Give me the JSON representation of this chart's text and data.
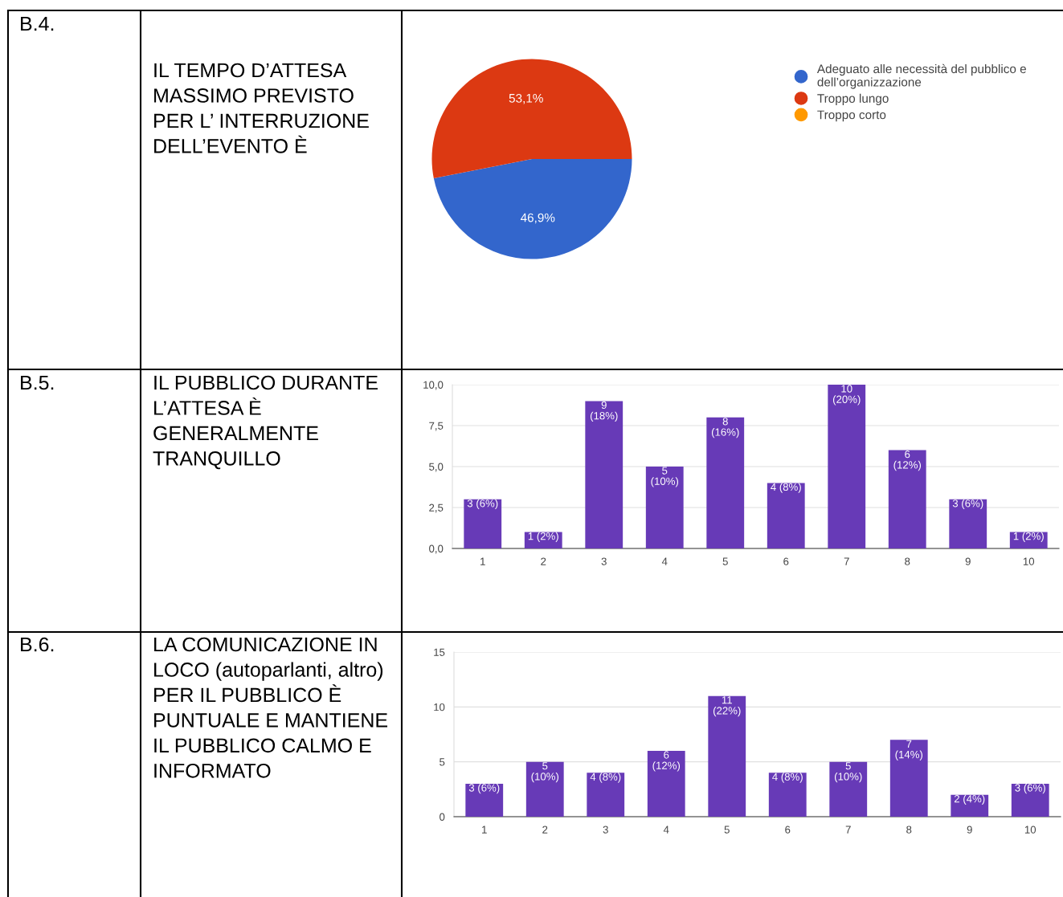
{
  "chart_data": [
    {
      "type": "pie",
      "title": "IL TEMPO D’ATTESA MASSIMO PREVISTO PER L’ INTERRUZIONE DELL’EVENTO È",
      "annotations": [
        "B.4."
      ],
      "categories": [
        "Adeguato alle necessità del pubblico e dell’organizzazione",
        "Troppo lungo",
        "Troppo corto"
      ],
      "values": [
        46.9,
        53.1,
        0
      ],
      "colors": [
        "#3366cc",
        "#dc3912",
        "#ff9900"
      ],
      "value_labels": [
        "46,9%",
        "53,1%",
        null
      ],
      "legend": "top right"
    },
    {
      "type": "bar",
      "title": "IL PUBBLICO DURANTE L’ATTESA È GENERALMENTE TRANQUILLO",
      "annotations": [
        "B.5."
      ],
      "categories": [
        "1",
        "2",
        "3",
        "4",
        "5",
        "6",
        "7",
        "8",
        "9",
        "10"
      ],
      "values": [
        3,
        1,
        9,
        5,
        8,
        4,
        10,
        6,
        3,
        1
      ],
      "color": "#673ab7",
      "value_labels": [
        "3 (6%)",
        "1 (2%)",
        "9\n(18%)",
        "5\n(10%)",
        "8\n(16%)",
        "4 (8%)",
        "10\n(20%)",
        "6\n(12%)",
        "3 (6%)",
        "1 (2%)"
      ],
      "ylim": [
        0,
        10
      ],
      "yticks": [
        {
          "value": 0,
          "label": "0,0"
        },
        {
          "value": 2.5,
          "label": "2,5"
        },
        {
          "value": 5,
          "label": "5,0"
        },
        {
          "value": 7.5,
          "label": "7,5"
        },
        {
          "value": 10,
          "label": "10,0"
        }
      ],
      "grid": "y"
    },
    {
      "type": "bar",
      "title": "LA COMUNICAZIONE IN LOCO (autoparlanti, altro) PER IL PUBBLICO È PUNTUALE E MANTIENE IL PUBBLICO CALMO E INFORMATO",
      "annotations": [
        "B.6."
      ],
      "categories": [
        "1",
        "2",
        "3",
        "4",
        "5",
        "6",
        "7",
        "8",
        "9",
        "10"
      ],
      "values": [
        3,
        5,
        4,
        6,
        11,
        4,
        5,
        7,
        2,
        3
      ],
      "color": "#673ab7",
      "value_labels": [
        "3 (6%)",
        "5\n(10%)",
        "4 (8%)",
        "6\n(12%)",
        "11\n(22%)",
        "4 (8%)",
        "5\n(10%)",
        "7\n(14%)",
        "2 (4%)",
        "3 (6%)"
      ],
      "ylim": [
        0,
        15
      ],
      "yticks": [
        0,
        5,
        10,
        15
      ],
      "grid": "y"
    }
  ]
}
